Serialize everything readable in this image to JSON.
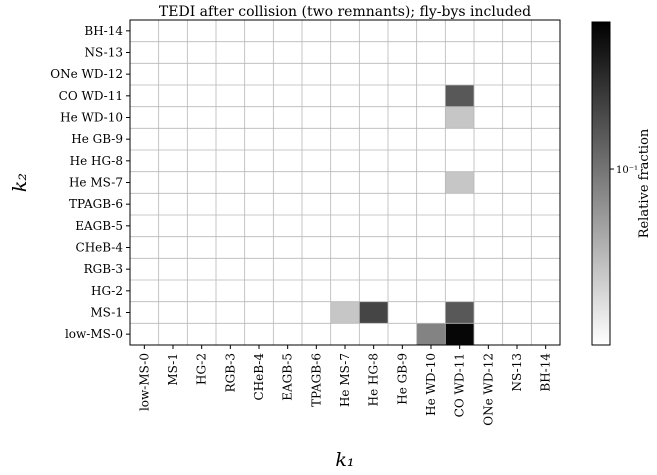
{
  "chart_data": {
    "type": "heatmap",
    "title": "TEDI after collision (two remnants); fly-bys included",
    "xlabel": "k₁",
    "ylabel": "k₂",
    "x_categories": [
      "low-MS-0",
      "MS-1",
      "HG-2",
      "RGB-3",
      "CHeB-4",
      "EAGB-5",
      "TPAGB-6",
      "He MS-7",
      "He HG-8",
      "He GB-9",
      "He WD-10",
      "CO WD-11",
      "ONe WD-12",
      "NS-13",
      "BH-14"
    ],
    "y_categories": [
      "low-MS-0",
      "MS-1",
      "HG-2",
      "RGB-3",
      "CHeB-4",
      "EAGB-5",
      "TPAGB-6",
      "He MS-7",
      "He HG-8",
      "He GB-9",
      "He WD-10",
      "CO WD-11",
      "ONe WD-12",
      "NS-13",
      "BH-14"
    ],
    "cells": [
      {
        "x": "He MS-7",
        "y": "MS-1",
        "value": 0.03
      },
      {
        "x": "He HG-8",
        "y": "MS-1",
        "value": 0.2
      },
      {
        "x": "He WD-10",
        "y": "low-MS-0",
        "value": 0.08
      },
      {
        "x": "CO WD-11",
        "y": "low-MS-0",
        "value": 0.5
      },
      {
        "x": "CO WD-11",
        "y": "MS-1",
        "value": 0.15
      },
      {
        "x": "CO WD-11",
        "y": "He MS-7",
        "value": 0.03
      },
      {
        "x": "CO WD-11",
        "y": "He WD-10",
        "value": 0.03
      },
      {
        "x": "CO WD-11",
        "y": "CO WD-11",
        "value": 0.15
      }
    ],
    "colorbar": {
      "label": "Relative fraction",
      "scale": "log",
      "range": [
        0.013,
        0.55
      ],
      "colormap": "greys",
      "ticks": [
        {
          "value": 0.1,
          "label": "10⁻¹"
        }
      ]
    },
    "grid": true
  }
}
